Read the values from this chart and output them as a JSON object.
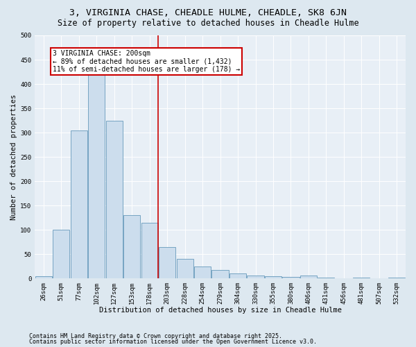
{
  "title": "3, VIRGINIA CHASE, CHEADLE HULME, CHEADLE, SK8 6JN",
  "subtitle": "Size of property relative to detached houses in Cheadle Hulme",
  "xlabel": "Distribution of detached houses by size in Cheadle Hulme",
  "ylabel": "Number of detached properties",
  "categories": [
    "26sqm",
    "51sqm",
    "77sqm",
    "102sqm",
    "127sqm",
    "153sqm",
    "178sqm",
    "203sqm",
    "228sqm",
    "254sqm",
    "279sqm",
    "304sqm",
    "330sqm",
    "355sqm",
    "380sqm",
    "406sqm",
    "431sqm",
    "456sqm",
    "481sqm",
    "507sqm",
    "532sqm"
  ],
  "values": [
    5,
    100,
    305,
    425,
    325,
    130,
    115,
    65,
    40,
    25,
    17,
    10,
    6,
    5,
    3,
    6,
    2,
    0,
    2,
    0,
    2
  ],
  "bar_color": "#ccdded",
  "bar_edge_color": "#6699bb",
  "vline_color": "#cc0000",
  "vline_x_idx": 7,
  "annotation_text": "3 VIRGINIA CHASE: 200sqm\n← 89% of detached houses are smaller (1,432)\n11% of semi-detached houses are larger (178) →",
  "annotation_box_facecolor": "#ffffff",
  "annotation_box_edgecolor": "#cc0000",
  "ylim": [
    0,
    500
  ],
  "yticks": [
    0,
    50,
    100,
    150,
    200,
    250,
    300,
    350,
    400,
    450,
    500
  ],
  "footer1": "Contains HM Land Registry data © Crown copyright and database right 2025.",
  "footer2": "Contains public sector information licensed under the Open Government Licence v3.0.",
  "bg_color": "#dde8f0",
  "plot_bg_color": "#e8eff6",
  "title_fontsize": 9.5,
  "subtitle_fontsize": 8.5,
  "axis_label_fontsize": 7.5,
  "tick_fontsize": 6.5,
  "annot_fontsize": 7,
  "footer_fontsize": 6
}
